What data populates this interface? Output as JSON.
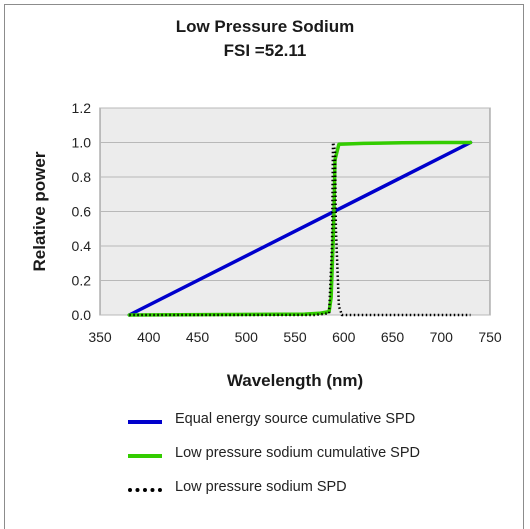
{
  "chart_data": {
    "type": "line",
    "title": "Low Pressure Sodium",
    "subtitle": "FSI =52.11",
    "xlabel": "Wavelength (nm)",
    "ylabel": "Relative power",
    "xlim": [
      350,
      750
    ],
    "ylim": [
      0.0,
      1.2
    ],
    "x_ticks": [
      "350",
      "400",
      "450",
      "500",
      "550",
      "600",
      "650",
      "700",
      "750"
    ],
    "y_ticks": [
      "0.0",
      "0.2",
      "0.4",
      "0.6",
      "0.8",
      "1.0",
      "1.2"
    ],
    "grid": "horizontal",
    "legend_position": "bottom",
    "series": [
      {
        "name": "Equal energy source cumulative SPD",
        "color": "#0000cc",
        "style": "solid",
        "x": [
          380,
          730
        ],
        "y": [
          0.0,
          1.0
        ]
      },
      {
        "name": "Low pressure sodium cumulative SPD",
        "color": "#33cc00",
        "style": "solid",
        "x": [
          380,
          560,
          575,
          585,
          587,
          589,
          590,
          591,
          595,
          620,
          660,
          700,
          730
        ],
        "y": [
          0.0,
          0.005,
          0.01,
          0.02,
          0.1,
          0.4,
          0.6,
          0.9,
          0.99,
          0.995,
          0.998,
          1.0,
          1.0
        ]
      },
      {
        "name": "Low pressure sodium SPD",
        "color": "#000000",
        "style": "dotted",
        "x": [
          380,
          570,
          585,
          588,
          589,
          590,
          591,
          592,
          595,
          597,
          598,
          730
        ],
        "y": [
          0.0,
          0.0,
          0.01,
          0.4,
          1.0,
          0.98,
          0.95,
          0.5,
          0.05,
          0.02,
          0.0,
          0.0
        ]
      }
    ]
  }
}
